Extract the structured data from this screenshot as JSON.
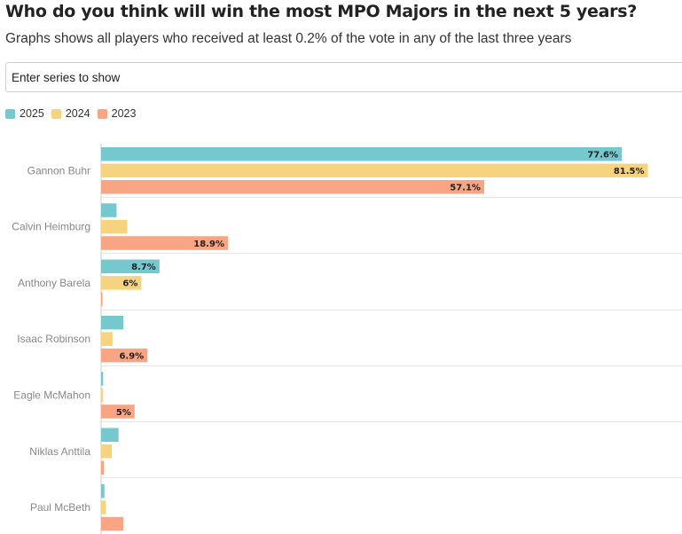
{
  "header": {
    "title": "Who do you think will win the most MPO Majors in the next 5 years?",
    "subtitle": "Graphs shows all players who received at least 0.2% of the vote in any of the last three years"
  },
  "search": {
    "placeholder": "Enter series to show"
  },
  "legend": [
    {
      "name": "2025",
      "color": "#76c8cf"
    },
    {
      "name": "2024",
      "color": "#f6d47f"
    },
    {
      "name": "2023",
      "color": "#f9a482"
    }
  ],
  "chart_data": {
    "type": "bar",
    "orientation": "horizontal",
    "title": "Who do you think will win the most MPO Majors in the next 5 years?",
    "subtitle": "Graphs shows all players who received at least 0.2% of the vote in any of the last three years",
    "categories": [
      "Gannon Buhr",
      "Calvin Heimburg",
      "Anthony Barela",
      "Isaac Robinson",
      "Eagle McMahon",
      "Niklas Anttila",
      "Paul McBeth"
    ],
    "series": [
      {
        "name": "2025",
        "color": "#76c8cf",
        "values": [
          77.6,
          2.3,
          8.7,
          3.3,
          0.3,
          2.6,
          0.5
        ]
      },
      {
        "name": "2024",
        "color": "#f6d47f",
        "values": [
          81.5,
          3.9,
          6,
          1.7,
          0.3,
          1.6,
          0.7
        ]
      },
      {
        "name": "2023",
        "color": "#f9a482",
        "values": [
          57.1,
          18.9,
          0.2,
          6.9,
          5,
          0.4,
          3.3
        ]
      }
    ],
    "labels_shown": {
      "2025": [
        "77.6%",
        "",
        "8.7%",
        "",
        "",
        "",
        ""
      ],
      "2024": [
        "81.5%",
        "",
        "6%",
        "",
        "",
        "",
        ""
      ],
      "2023": [
        "57.1%",
        "18.9%",
        "",
        "6.9%",
        "5%",
        "",
        ""
      ]
    },
    "xlim": [
      0,
      100
    ],
    "grid": true,
    "legend_position": "top-left"
  }
}
